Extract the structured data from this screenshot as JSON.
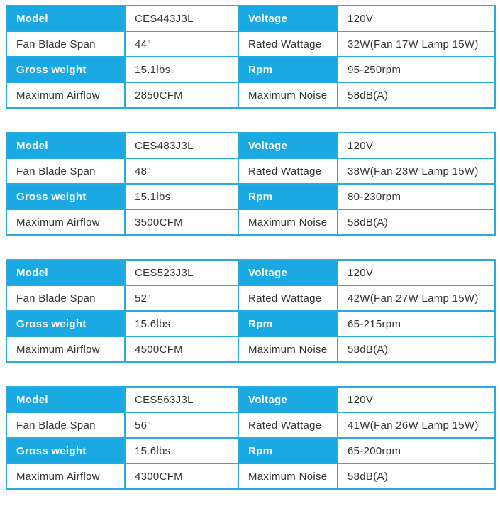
{
  "colors": {
    "header_blue": "#1aa9e2",
    "border_blue": "#2aabdf",
    "text_dark": "#333333",
    "text_white": "#ffffff",
    "page_bg": "#ffffff"
  },
  "tables": [
    {
      "model": "CES443J3L",
      "rows": [
        {
          "cells": [
            "Model",
            "CES443J3L",
            "Voltage",
            "120V"
          ]
        },
        {
          "cells": [
            "Fan Blade Span",
            "44\"",
            "Rated Wattage",
            "32W(Fan 17W Lamp 15W)"
          ]
        },
        {
          "cells": [
            "Gross weight",
            "15.1lbs.",
            "Rpm",
            "95-250rpm"
          ]
        },
        {
          "cells": [
            "Maximum Airflow",
            "2850CFM",
            "Maximum Noise",
            "58dB(A)"
          ]
        }
      ]
    },
    {
      "model": "CES483J3L",
      "rows": [
        {
          "cells": [
            "Model",
            "CES483J3L",
            "Voltage",
            "120V"
          ]
        },
        {
          "cells": [
            "Fan Blade Span",
            "48\"",
            "Rated Wattage",
            "38W(Fan 23W Lamp 15W)"
          ]
        },
        {
          "cells": [
            "Gross weight",
            "15.1lbs.",
            "Rpm",
            "80-230rpm"
          ]
        },
        {
          "cells": [
            "Maximum Airflow",
            "3500CFM",
            "Maximum Noise",
            "58dB(A)"
          ]
        }
      ]
    },
    {
      "model": "CES523J3L",
      "rows": [
        {
          "cells": [
            "Model",
            "CES523J3L",
            "Voltage",
            "120V"
          ]
        },
        {
          "cells": [
            "Fan Blade Span",
            "52\"",
            "Rated Wattage",
            "42W(Fan 27W Lamp 15W)"
          ]
        },
        {
          "cells": [
            "Gross weight",
            "15.6lbs.",
            "Rpm",
            "65-215rpm"
          ]
        },
        {
          "cells": [
            "Maximum Airflow",
            "4500CFM",
            "Maximum Noise",
            "58dB(A)"
          ]
        }
      ]
    },
    {
      "model": "CES563J3L",
      "rows": [
        {
          "cells": [
            "Model",
            "CES563J3L",
            "Voltage",
            "120V"
          ]
        },
        {
          "cells": [
            "Fan Blade Span",
            "56\"",
            "Rated Wattage",
            "41W(Fan 26W Lamp 15W)"
          ]
        },
        {
          "cells": [
            "Gross weight",
            "15.6lbs.",
            "Rpm",
            "65-200rpm"
          ]
        },
        {
          "cells": [
            "Maximum Airflow",
            "4300CFM",
            "Maximum Noise",
            "58dB(A)"
          ]
        }
      ]
    }
  ]
}
